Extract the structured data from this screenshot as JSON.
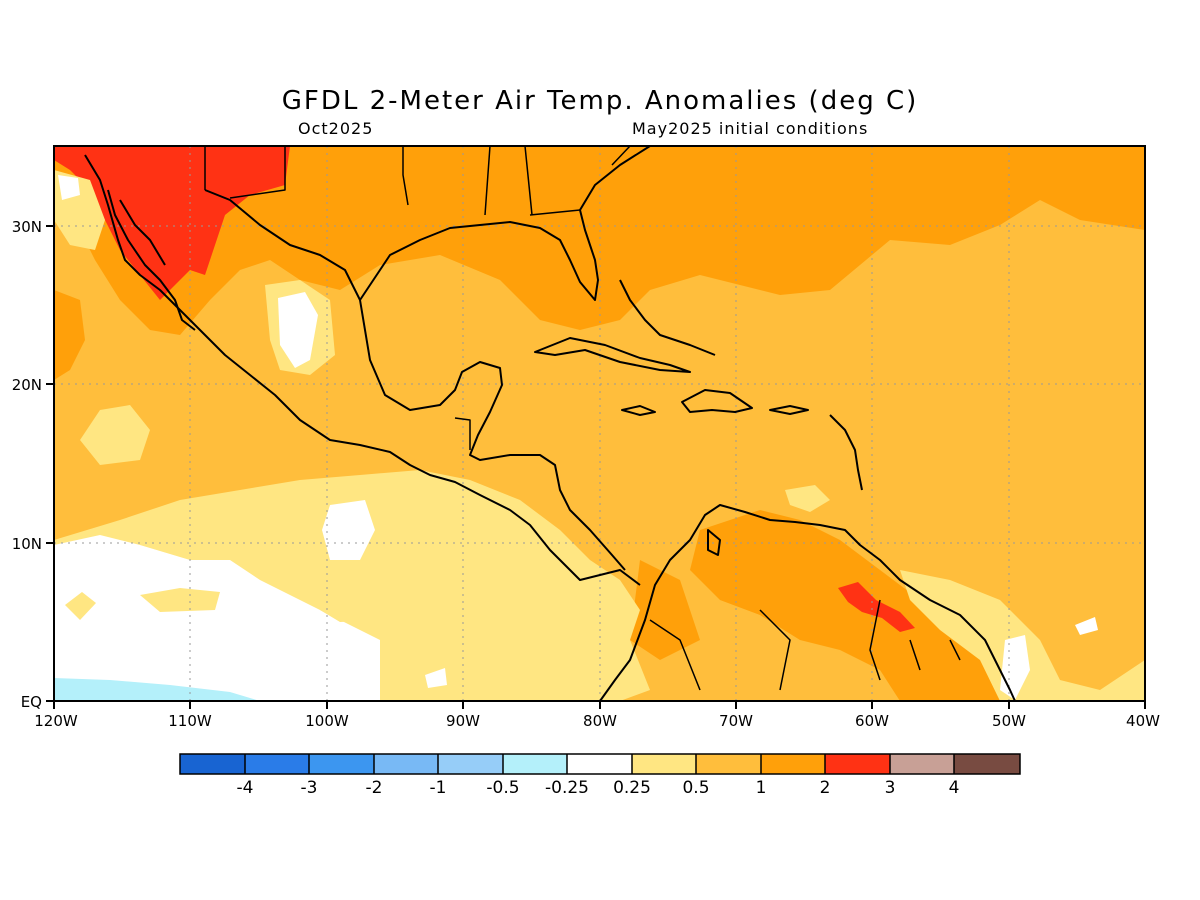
{
  "title": "GFDL 2-Meter Air Temp. Anomalies (deg C)",
  "subtitle_left": "Oct2025",
  "subtitle_right": "May2025 initial conditions",
  "axes": {
    "lon_labels": [
      "120W",
      "110W",
      "100W",
      "90W",
      "80W",
      "70W",
      "60W",
      "50W",
      "40W"
    ],
    "lat_labels": [
      "EQ",
      "10N",
      "20N",
      "30N"
    ]
  },
  "colorbar": {
    "tick_labels": [
      "-4",
      "-3",
      "-2",
      "-1",
      "-0.5",
      "-0.25",
      "0.25",
      "0.5",
      "1",
      "2",
      "3",
      "4"
    ],
    "colors": [
      "#1864d2",
      "#2a7ce8",
      "#3c96f0",
      "#78b9f5",
      "#96cdf8",
      "#b4f0fa",
      "#ffffff",
      "#ffe682",
      "#ffbe3c",
      "#ffa00a",
      "#ff3214",
      "#c8a096",
      "#784b41"
    ]
  }
}
